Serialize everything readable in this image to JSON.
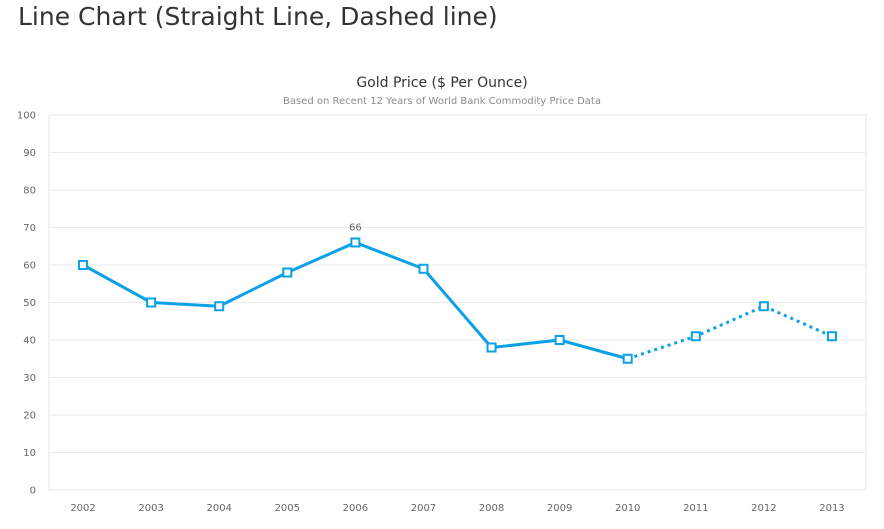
{
  "page": {
    "title": "Line Chart (Straight Line, Dashed line)"
  },
  "colors": {
    "line": "#0aa1e6",
    "grid": "#ebebeb",
    "border": "#e6e6e6",
    "marker_fill": "#ffffff"
  },
  "chart_data": {
    "type": "line",
    "title": "Gold Price ($ Per Ounce)",
    "subtitle": "Based on Recent 12 Years of World Bank Commodity Price Data",
    "xlabel": "",
    "ylabel": "",
    "categories": [
      "2002",
      "2003",
      "2004",
      "2005",
      "2006",
      "2007",
      "2008",
      "2009",
      "2010",
      "2011",
      "2012",
      "2013"
    ],
    "series": [
      {
        "values": [
          60,
          50,
          49,
          58,
          66,
          59,
          38,
          40,
          35,
          41,
          49,
          41
        ],
        "line_style_solid_through": "2010",
        "line_style_dashed_from": "2010",
        "marker": "square"
      }
    ],
    "data_labels": [
      {
        "category": "2006",
        "value": 66,
        "text": "66"
      }
    ],
    "ylim": [
      0,
      100
    ],
    "yticks": [
      0,
      10,
      20,
      30,
      40,
      50,
      60,
      70,
      80,
      90,
      100
    ],
    "grid": true,
    "legend": "none"
  }
}
